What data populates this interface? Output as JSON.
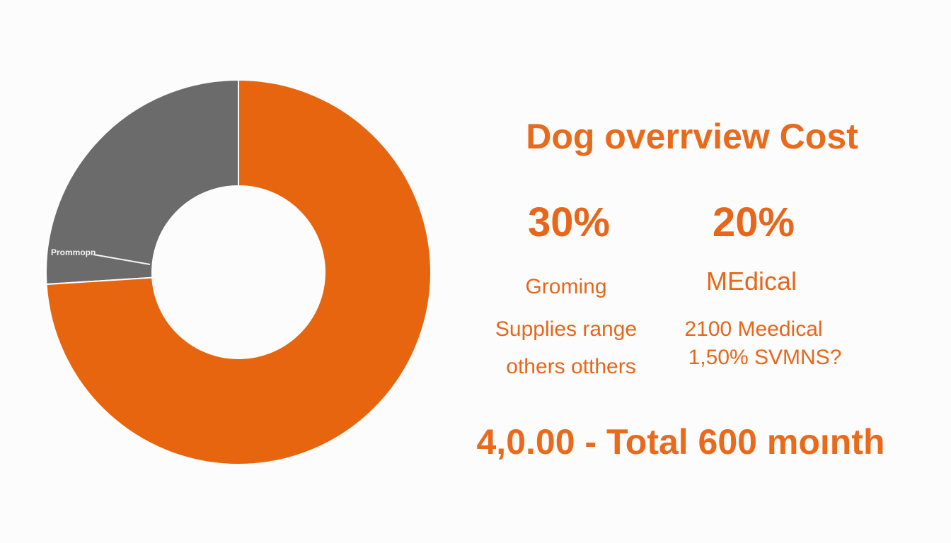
{
  "chart_data": {
    "type": "pie",
    "subtype": "donut",
    "categories": [
      "Prommopn",
      ""
    ],
    "values": [
      26,
      74
    ],
    "colors": [
      "#6b6b6b",
      "#e8650f"
    ],
    "slice_labels": [
      "Prommopn"
    ],
    "title": "Dog overrview  Cost",
    "legend": "none"
  },
  "panel": {
    "title": "Dog overrview  Cost",
    "stat1": {
      "value": "30%",
      "label": "Groming",
      "line1": "Supplies range",
      "line2": "others otthers"
    },
    "stat2": {
      "value": "20%",
      "label": "MEdical",
      "line1": "2100 Meedical",
      "line2": "1,50% SVMNS?"
    },
    "footer": "4,0.00 - Total 600 moınth"
  },
  "colors": {
    "accent": "#e8661a",
    "gray": "#6b6b6b",
    "background": "#fcfcfc"
  }
}
